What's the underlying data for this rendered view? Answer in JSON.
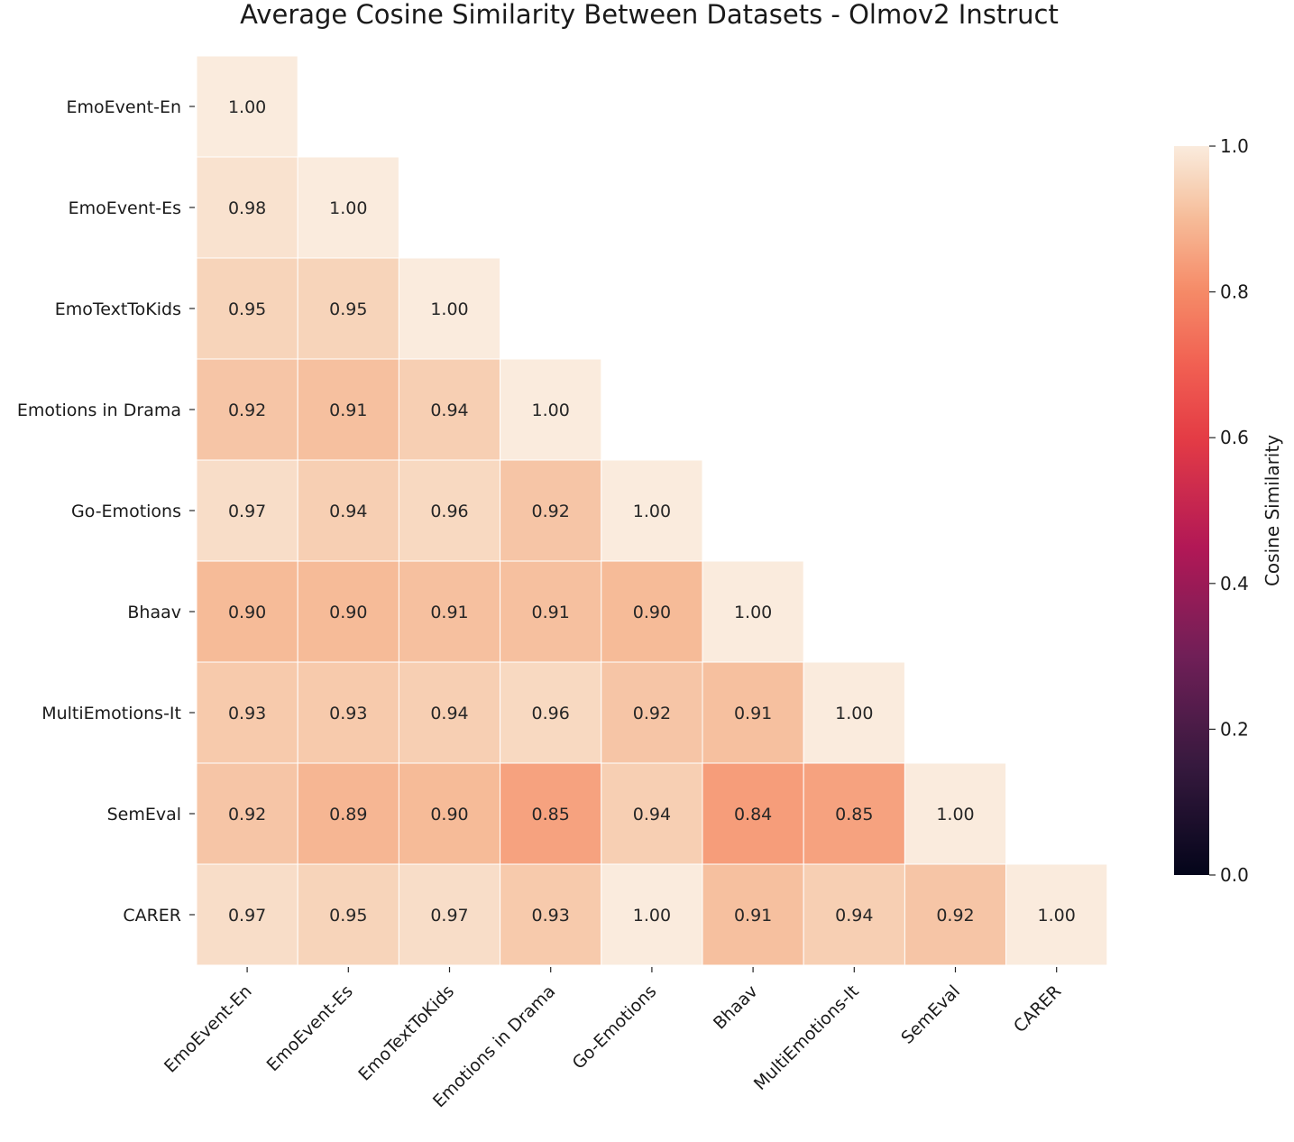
{
  "chart_data": {
    "type": "heatmap",
    "title": "Average Cosine Similarity Between Datasets - Olmov2 Instruct",
    "categories": [
      "EmoEvent-En",
      "EmoEvent-Es",
      "EmoTextToKids",
      "Emotions in Drama",
      "Go-Emotions",
      "Bhaav",
      "MultiEmotions-It",
      "SemEval",
      "CARER"
    ],
    "matrix": [
      [
        1.0
      ],
      [
        0.98,
        1.0
      ],
      [
        0.95,
        0.95,
        1.0
      ],
      [
        0.92,
        0.91,
        0.94,
        1.0
      ],
      [
        0.97,
        0.94,
        0.96,
        0.92,
        1.0
      ],
      [
        0.9,
        0.9,
        0.91,
        0.91,
        0.9,
        1.0
      ],
      [
        0.93,
        0.93,
        0.94,
        0.96,
        0.92,
        0.91,
        1.0
      ],
      [
        0.92,
        0.89,
        0.9,
        0.85,
        0.94,
        0.84,
        0.85,
        1.0
      ],
      [
        0.97,
        0.95,
        0.97,
        0.93,
        1.0,
        0.91,
        0.94,
        0.92,
        1.0
      ]
    ],
    "mask": "upper-triangle",
    "value_format": "0.00",
    "colormap": "rocket",
    "vmin": 0.0,
    "vmax": 1.0,
    "colorbar": {
      "label": "Cosine Similarity",
      "ticks": [
        0.0,
        0.2,
        0.4,
        0.6,
        0.8,
        1.0
      ],
      "tick_labels": [
        "0.0",
        "0.2",
        "0.4",
        "0.6",
        "0.8",
        "1.0"
      ],
      "position": "right"
    },
    "grid": false,
    "cell_border_color": "#ffffff"
  }
}
